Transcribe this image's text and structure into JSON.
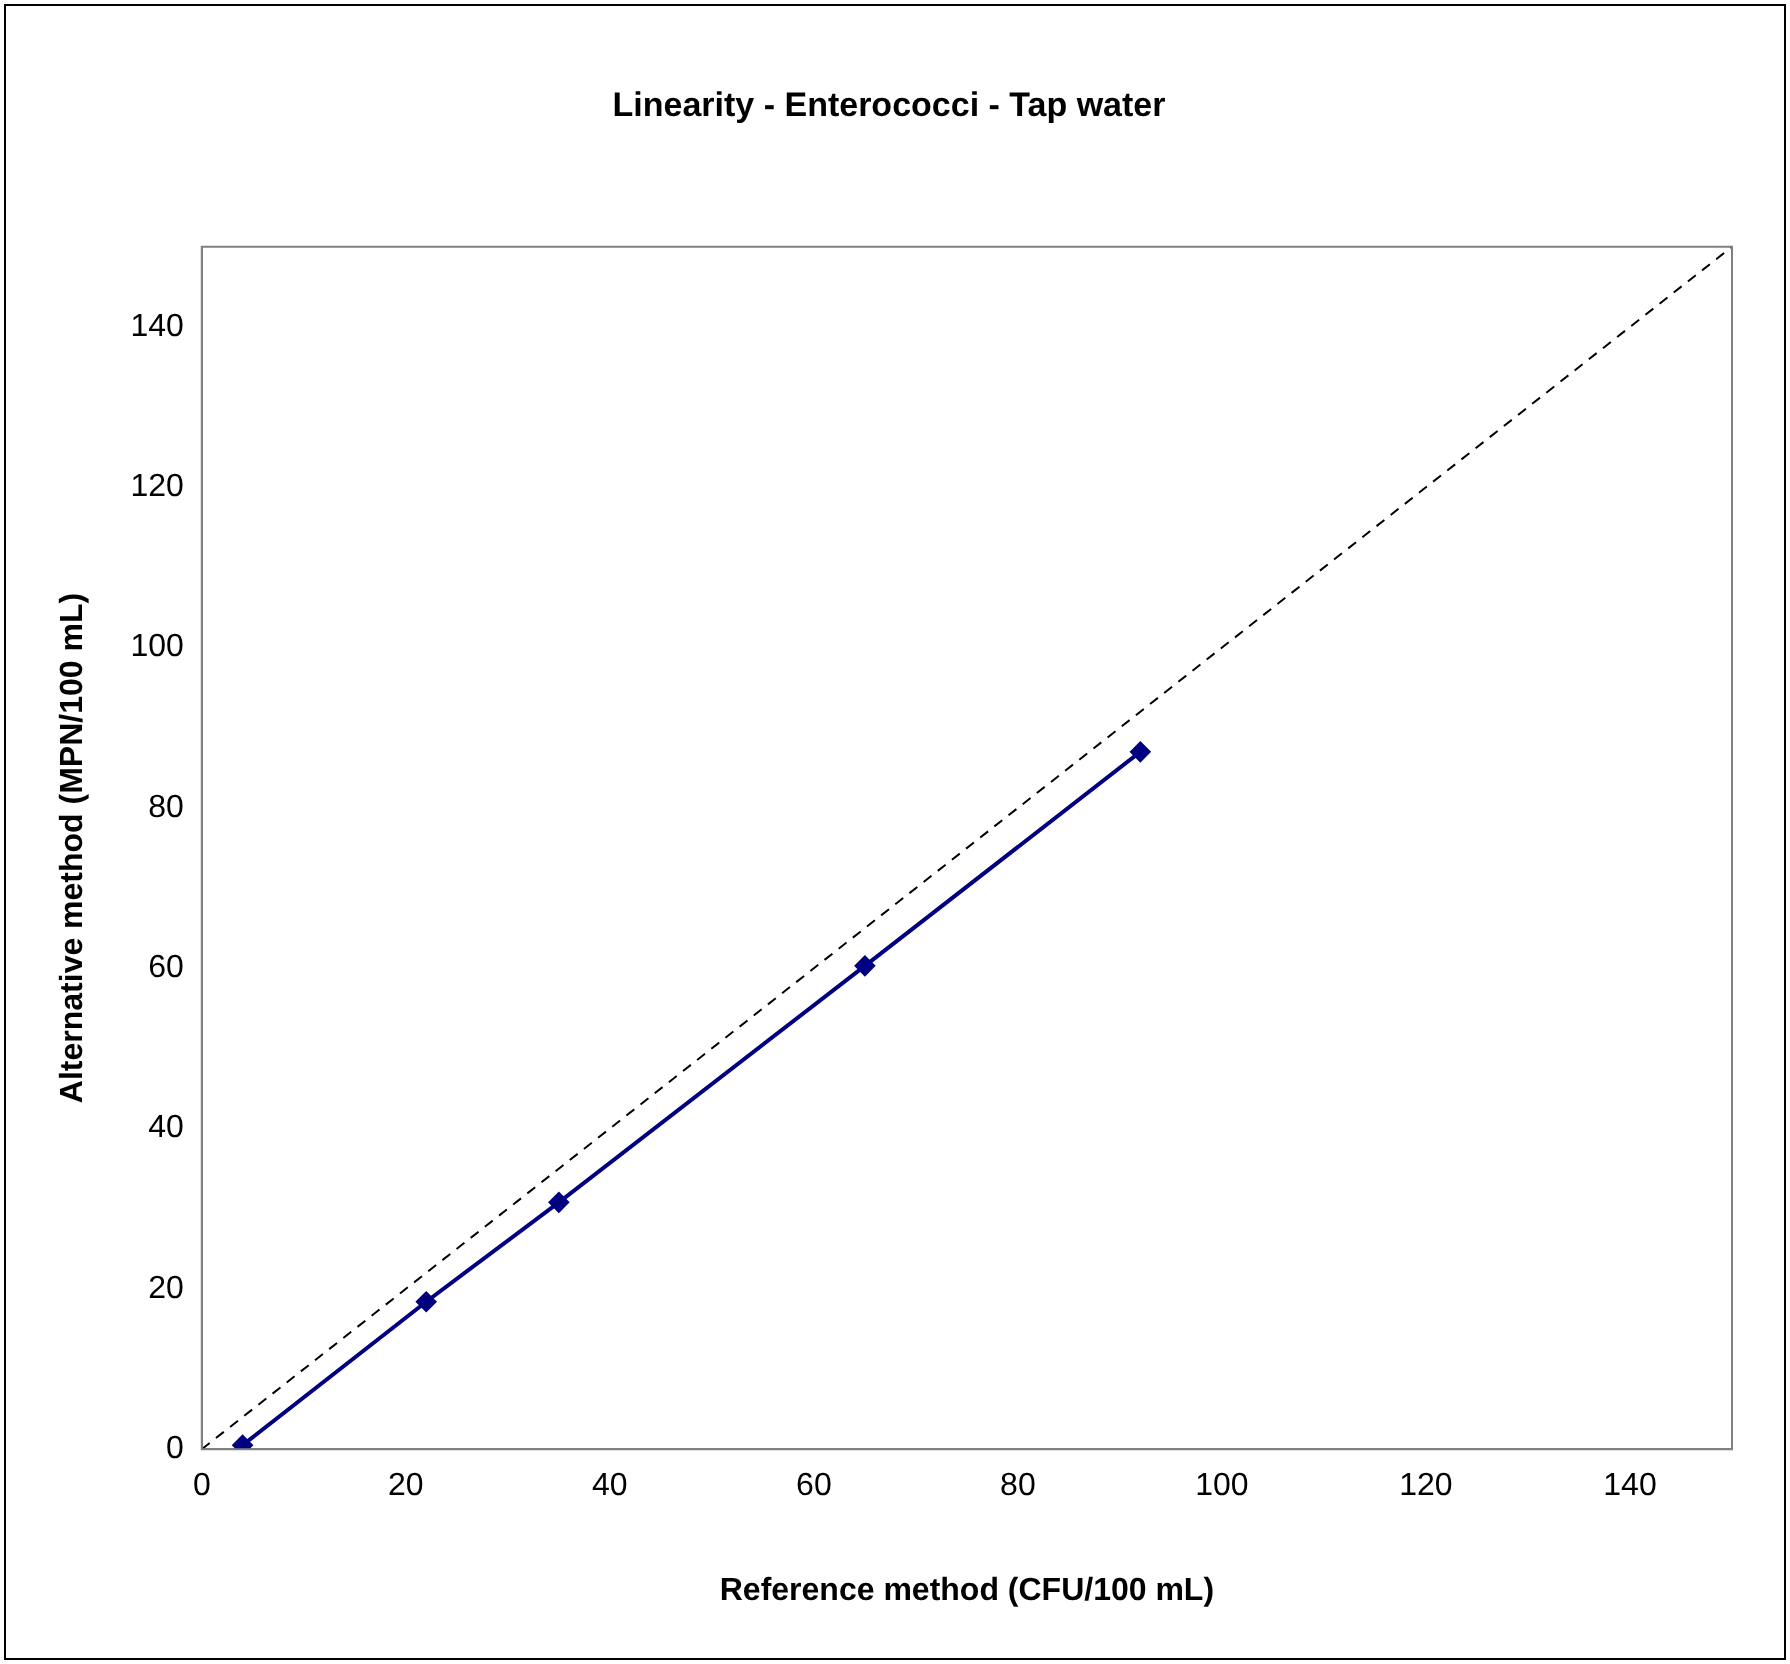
{
  "chart_data": {
    "type": "line",
    "title": "Linearity - Enterococci - Tap water",
    "xlabel": "Reference method (CFU/100 mL)",
    "ylabel": "Alternative method (MPN/100 mL)",
    "xlim": [
      0,
      150
    ],
    "ylim": [
      0,
      150
    ],
    "xticks": [
      0,
      20,
      40,
      60,
      80,
      100,
      120,
      140
    ],
    "yticks": [
      0,
      20,
      40,
      60,
      80,
      100,
      120,
      140
    ],
    "grid": false,
    "legend": false,
    "series": [
      {
        "x": [
          4,
          22,
          35,
          65,
          92
        ],
        "values": [
          0.5,
          18.4,
          30.8,
          60.3,
          87
        ],
        "color": "#000080",
        "marker": "diamond",
        "line_style": "solid"
      },
      {
        "x": [
          0,
          150
        ],
        "values": [
          0,
          150
        ],
        "color": "#000000",
        "marker": "none",
        "line_style": "dashed"
      }
    ]
  }
}
